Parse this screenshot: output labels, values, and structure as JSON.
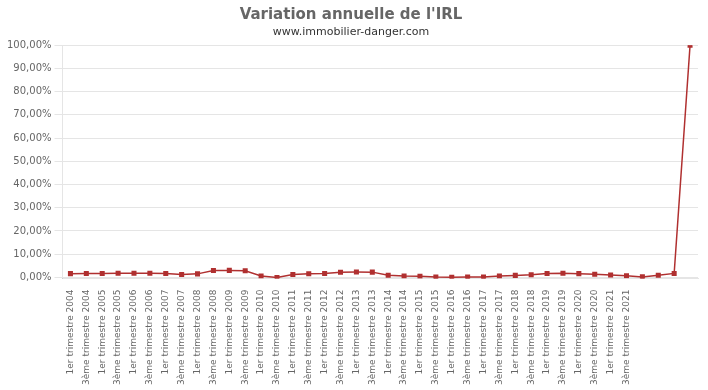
{
  "chart_data": {
    "type": "line",
    "title": "Variation annuelle de l'IRL",
    "subtitle": "www.immobilier-danger.com",
    "categories": [
      "1er trimestre 2004",
      "3ème trimestre 2004",
      "1er trimestre 2005",
      "3ème trimestre 2005",
      "1er trimestre 2006",
      "3ème trimestre 2006",
      "1er trimestre 2007",
      "3ème trimestre 2007",
      "1er trimestre 2008",
      "3ème trimestre 2008",
      "1er trimestre 2009",
      "3ème trimestre 2009",
      "1er trimestre 2010",
      "3ème trimestre 2010",
      "1er trimestre 2011",
      "3ème trimestre 2011",
      "1er trimestre 2012",
      "3ème trimestre 2012",
      "1er trimestre 2013",
      "3ème trimestre 2013",
      "1er trimestre 2014",
      "3ème trimestre 2014",
      "1er trimestre 2015",
      "3ème trimestre 2015",
      "1er trimestre 2016",
      "3ème trimestre 2016",
      "1er trimestre 2017",
      "3ème trimestre 2017",
      "1er trimestre 2018",
      "3ème trimestre 2018",
      "1er trimestre 2019",
      "3ème trimestre 2019",
      "1er trimestre 2020",
      "3ème trimestre 2020",
      "1er trimestre 2021",
      "3ème trimestre 2021",
      null,
      null,
      null,
      null
    ],
    "values": [
      0.016,
      0.0163,
      0.0165,
      0.0178,
      0.0175,
      0.0175,
      0.017,
      0.012,
      0.015,
      0.0295,
      0.03,
      0.0285,
      0.006,
      -0.0002,
      0.012,
      0.0155,
      0.0165,
      0.022,
      0.023,
      0.0225,
      0.0095,
      0.006,
      0.0048,
      0.001,
      0.0002,
      0.001,
      0.001,
      0.006,
      0.0085,
      0.011,
      0.0165,
      0.018,
      0.016,
      0.0135,
      0.01,
      0.0065,
      0.002,
      0.009,
      0.017,
      1.0
    ],
    "color": "#b03030",
    "marker": "square",
    "ylim": [
      -0.005,
      1.0
    ],
    "yticks": [
      {
        "value": 0.0,
        "label": "0,00%"
      },
      {
        "value": 0.1,
        "label": "10,00%"
      },
      {
        "value": 0.2,
        "label": "20,00%"
      },
      {
        "value": 0.3,
        "label": "30,00%"
      },
      {
        "value": 0.4,
        "label": "40,00%"
      },
      {
        "value": 0.5,
        "label": "50,00%"
      },
      {
        "value": 0.6,
        "label": "60,00%"
      },
      {
        "value": 0.7,
        "label": "70,00%"
      },
      {
        "value": 0.8,
        "label": "80,00%"
      },
      {
        "value": 0.9,
        "label": "90,00%"
      },
      {
        "value": 1.0,
        "label": "100,00%"
      }
    ],
    "grid": "y"
  }
}
